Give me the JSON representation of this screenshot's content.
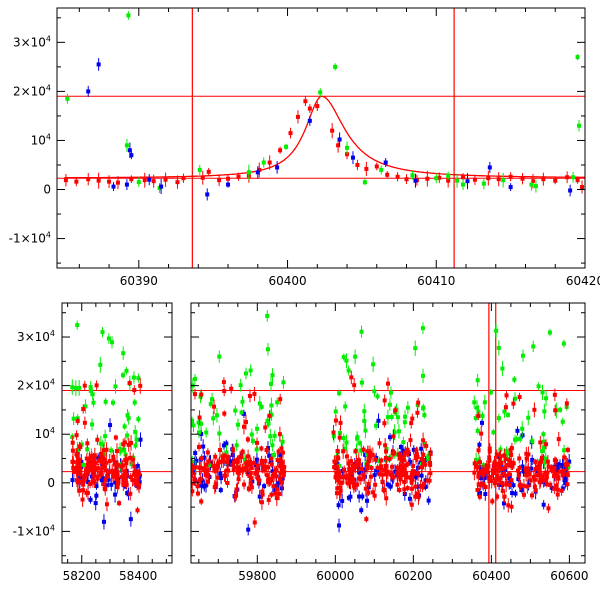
{
  "colors": {
    "red": "#ff0000",
    "green": "#00ee00",
    "blue": "#0000ee",
    "axis": "#000000"
  },
  "chart_data": [
    {
      "type": "scatter",
      "title": "",
      "xlabel": "",
      "ylabel": "",
      "xlim": [
        60384.5,
        60420
      ],
      "ylim": [
        -16000,
        37000
      ],
      "grid": false,
      "x_ticks": [
        {
          "value": 60390,
          "label": "60390"
        },
        {
          "value": 60400,
          "label": "60400"
        },
        {
          "value": 60410,
          "label": "60410"
        },
        {
          "value": 60420,
          "label": "60420"
        }
      ],
      "y_ticks": [
        {
          "value": 30000,
          "base": "3×10",
          "exp": "4"
        },
        {
          "value": 20000,
          "base": "2×10",
          "exp": "4"
        },
        {
          "value": 10000,
          "base": "10",
          "exp": "4"
        },
        {
          "value": 0,
          "base": "0",
          "exp": ""
        },
        {
          "value": -10000,
          "base": "-1×10",
          "exp": "4"
        }
      ],
      "hlines": [
        19000,
        2300
      ],
      "vlines": [
        60393.6,
        60411.2
      ],
      "model_curve": {
        "baseline": 2300,
        "peak": 19000,
        "t0": 60402.3,
        "x_range": [
          60385,
          60420
        ]
      },
      "series": [
        {
          "color": "red",
          "points": [
            [
              60385.1,
              1900
            ],
            [
              60385.8,
              1600
            ],
            [
              60386.6,
              2100
            ],
            [
              60387.3,
              1800
            ],
            [
              60388.0,
              1600
            ],
            [
              60388.6,
              1400
            ],
            [
              60389.5,
              2100
            ],
            [
              60390.4,
              1900
            ],
            [
              60391.0,
              1700
            ],
            [
              60391.8,
              2000
            ],
            [
              60392.6,
              1500
            ],
            [
              60393.0,
              2300
            ],
            [
              60394.3,
              2400
            ],
            [
              60394.7,
              3600
            ],
            [
              60395.4,
              1900
            ],
            [
              60396.0,
              2200
            ],
            [
              60396.7,
              2600
            ],
            [
              60397.4,
              2800
            ],
            [
              60398.1,
              4000
            ],
            [
              60398.8,
              5500
            ],
            [
              60399.5,
              8000
            ],
            [
              60400.2,
              11500
            ],
            [
              60400.7,
              14800
            ],
            [
              60401.2,
              18000
            ],
            [
              60401.5,
              16500
            ],
            [
              60402.0,
              17000
            ],
            [
              60403.0,
              12000
            ],
            [
              60403.4,
              9000
            ],
            [
              60404.0,
              7200
            ],
            [
              60404.7,
              5000
            ],
            [
              60405.3,
              4200
            ],
            [
              60406.0,
              4700
            ],
            [
              60406.7,
              3000
            ],
            [
              60407.4,
              2600
            ],
            [
              60408.0,
              2100
            ],
            [
              60408.7,
              1900
            ],
            [
              60409.4,
              2200
            ],
            [
              60410.2,
              2400
            ],
            [
              60410.8,
              1800
            ],
            [
              60411.8,
              2500
            ],
            [
              60412.6,
              2000
            ],
            [
              60413.5,
              2300
            ],
            [
              60414.2,
              2100
            ],
            [
              60415.0,
              2600
            ],
            [
              60415.8,
              2200
            ],
            [
              60416.5,
              1700
            ],
            [
              60417.2,
              2100
            ],
            [
              60418.0,
              1800
            ],
            [
              60418.8,
              2500
            ],
            [
              60419.5,
              1900
            ],
            [
              60419.8,
              500
            ]
          ]
        },
        {
          "color": "green",
          "points": [
            [
              60385.2,
              18500
            ],
            [
              60389.2,
              9000
            ],
            [
              60389.3,
              35500
            ],
            [
              60390.0,
              1500
            ],
            [
              60391.4,
              300
            ],
            [
              60394.1,
              4000
            ],
            [
              60397.4,
              3500
            ],
            [
              60398.4,
              5500
            ],
            [
              60399.9,
              8700
            ],
            [
              60402.2,
              19800
            ],
            [
              60403.2,
              25000
            ],
            [
              60404.0,
              8500
            ],
            [
              60405.2,
              1500
            ],
            [
              60406.3,
              4000
            ],
            [
              60408.4,
              2900
            ],
            [
              60410.0,
              2300
            ],
            [
              60410.8,
              2800
            ],
            [
              60411.4,
              1800
            ],
            [
              60411.8,
              1000
            ],
            [
              60413.2,
              1200
            ],
            [
              60414.5,
              1900
            ],
            [
              60416.4,
              1000
            ],
            [
              60416.7,
              700
            ],
            [
              60419.5,
              27000
            ],
            [
              60419.6,
              13000
            ],
            [
              60419.2,
              2500
            ]
          ]
        },
        {
          "color": "blue",
          "points": [
            [
              60386.6,
              20000
            ],
            [
              60387.3,
              25500
            ],
            [
              60388.3,
              600
            ],
            [
              60389.2,
              1000
            ],
            [
              60389.4,
              8000
            ],
            [
              60389.5,
              7000
            ],
            [
              60390.7,
              2000
            ],
            [
              60391.5,
              600
            ],
            [
              60394.6,
              -1000
            ],
            [
              60396.0,
              1000
            ],
            [
              60398.0,
              3500
            ],
            [
              60399.3,
              4500
            ],
            [
              60401.5,
              14000
            ],
            [
              60403.5,
              10200
            ],
            [
              60404.4,
              6500
            ],
            [
              60406.6,
              5500
            ],
            [
              60408.6,
              1800
            ],
            [
              60412.1,
              1700
            ],
            [
              60413.6,
              4500
            ],
            [
              60415.0,
              500
            ],
            [
              60419.0,
              -200
            ]
          ]
        }
      ]
    },
    {
      "type": "scatter",
      "title": "",
      "xlabel": "",
      "ylabel": "",
      "ylim": [
        -16500,
        37000
      ],
      "grid": false,
      "x_ticks": [
        {
          "value": 58200,
          "label": "58200"
        },
        {
          "value": 58400,
          "label": "58400"
        },
        {
          "value": 59800,
          "label": "59800"
        },
        {
          "value": 60000,
          "label": "60000"
        },
        {
          "value": 60200,
          "label": "60200"
        },
        {
          "value": 60400,
          "label": "60400"
        },
        {
          "value": 60600,
          "label": "60600"
        }
      ],
      "y_ticks": [
        {
          "value": 30000,
          "base": "3×10",
          "exp": "4"
        },
        {
          "value": 20000,
          "base": "2×10",
          "exp": "4"
        },
        {
          "value": 10000,
          "base": "10",
          "exp": "4"
        },
        {
          "value": 0,
          "base": "0",
          "exp": ""
        },
        {
          "value": -10000,
          "base": "-1×10",
          "exp": "4"
        }
      ],
      "segments": [
        {
          "xlim": [
            58130,
            58520
          ]
        },
        {
          "xlim": [
            59630,
            60640
          ]
        }
      ],
      "hlines": [
        19000,
        2300
      ],
      "vlines": [
        60393.6,
        60411.2
      ],
      "clusters": [
        {
          "x": [
            58165,
            58410
          ],
          "spread": 2200,
          "n_red": 160,
          "n_green": 55,
          "n_blue": 60
        },
        {
          "x": [
            59630,
            59870
          ],
          "spread": 2600,
          "n_red": 170,
          "n_green": 55,
          "n_blue": 60
        },
        {
          "x": [
            59995,
            60245
          ],
          "spread": 2600,
          "n_red": 190,
          "n_green": 65,
          "n_blue": 70
        },
        {
          "x": [
            60355,
            60600
          ],
          "spread": 2300,
          "n_red": 170,
          "n_green": 55,
          "n_blue": 65
        }
      ]
    }
  ]
}
